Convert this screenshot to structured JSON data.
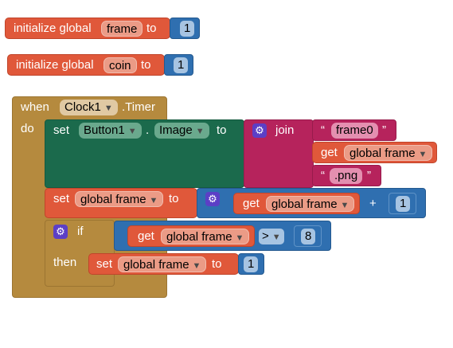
{
  "blocks": {
    "init_frame": {
      "keyword": "initialize global",
      "name": "frame",
      "to": "to",
      "value": "1"
    },
    "init_coin": {
      "keyword": "initialize global",
      "name": "coin",
      "to": "to",
      "value": "1"
    },
    "event": {
      "when": "when",
      "component": "Clock1",
      "event_name": ".Timer",
      "do": "do",
      "set_image": {
        "set": "set",
        "component": "Button1",
        "dot": ".",
        "property": "Image",
        "to": "to",
        "join": "join",
        "text1": "frame0",
        "get": "get",
        "get_var": "global frame",
        "text2": ".png",
        "open_quote": "“",
        "close_quote": "”"
      },
      "set_frame": {
        "set": "set",
        "var": "global frame",
        "to": "to",
        "get": "get",
        "get_var": "global frame",
        "op": "+",
        "value": "1"
      },
      "if_block": {
        "if": "if",
        "then": "then",
        "get": "get",
        "get_var": "global frame",
        "op": ">",
        "value": "8",
        "then_set": {
          "set": "set",
          "var": "global frame",
          "to": "to",
          "value": "1"
        }
      }
    }
  },
  "icons": {
    "mutator": "gear-icon",
    "dropdown": "dropdown-arrow-icon"
  },
  "colors": {
    "variables": "#e0583a",
    "math": "#2f6fb0",
    "control": "#b58a3e",
    "component": "#1b6a4c",
    "text": "#b6235c",
    "mutator": "#5c3fc6"
  }
}
